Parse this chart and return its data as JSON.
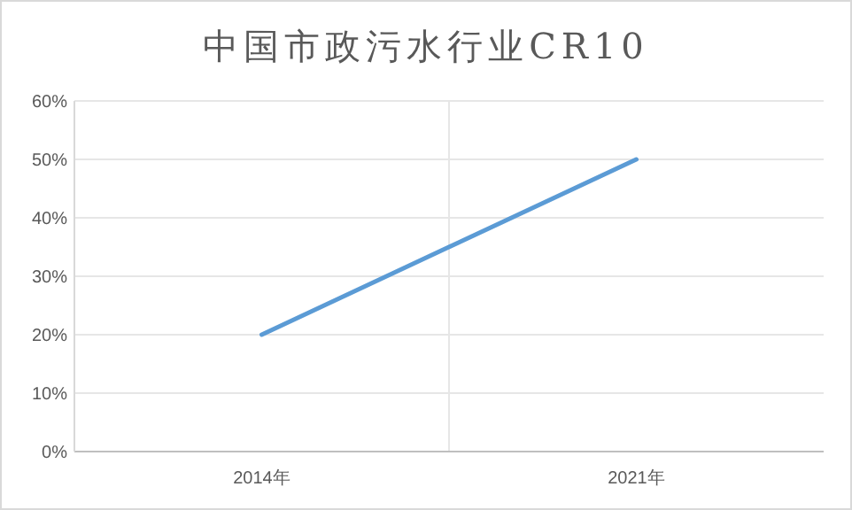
{
  "chart_data": {
    "type": "line",
    "title": "中国市政污水行业CR10",
    "categories": [
      "2014年",
      "2021年"
    ],
    "series": [
      {
        "color": "#5b9bd5",
        "values": [
          20,
          50
        ]
      }
    ],
    "ylim": [
      0,
      60
    ],
    "yticks": [
      {
        "value": 0,
        "label": "0%"
      },
      {
        "value": 10,
        "label": "10%"
      },
      {
        "value": 20,
        "label": "20%"
      },
      {
        "value": 30,
        "label": "30%"
      },
      {
        "value": 40,
        "label": "40%"
      },
      {
        "value": 50,
        "label": "50%"
      },
      {
        "value": 60,
        "label": "60%"
      }
    ],
    "grid": true,
    "marker": "none",
    "line_style": "solid"
  }
}
